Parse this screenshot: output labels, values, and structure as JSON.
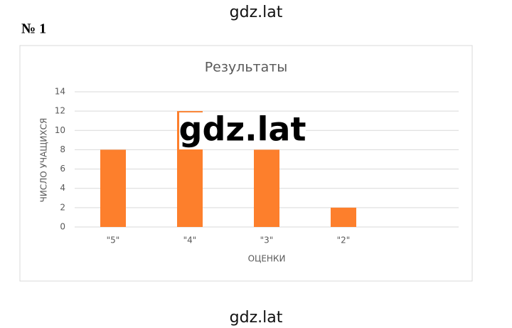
{
  "watermark_top": "gdz.lat",
  "problem_number": "№ 1",
  "watermark_center": "gdz.lat",
  "watermark_bottom": "gdz.lat",
  "chart_data": {
    "type": "bar",
    "title": "Результаты",
    "categories": [
      "\"5\"",
      "\"4\"",
      "\"3\"",
      "\"2\"",
      null
    ],
    "values": [
      8,
      12,
      8,
      2,
      null
    ],
    "color": "#fd7f2c",
    "x_label": "ОЦЕНКИ",
    "y_label": "ЧИСЛО УЧАЩИХСЯ",
    "ylim": [
      0,
      14
    ],
    "yticks": [
      0,
      2,
      4,
      6,
      8,
      10,
      12,
      14
    ],
    "grid": true
  }
}
